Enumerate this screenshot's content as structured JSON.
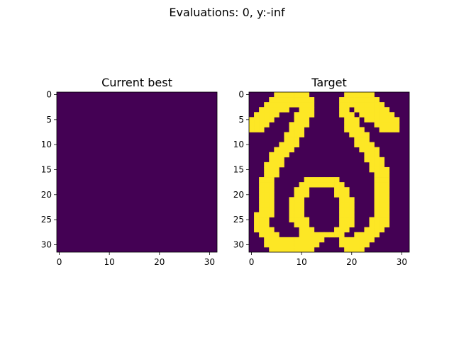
{
  "figure": {
    "suptitle": "Evaluations: 0, y:-inf"
  },
  "colors": {
    "background_low": "#440154",
    "foreground_high": "#fde725",
    "axis": "#000000"
  },
  "chart_data": [
    {
      "type": "heatmap",
      "title": "Current best",
      "xlabel": "",
      "ylabel": "",
      "grid_size": [
        32,
        32
      ],
      "xlim": [
        -0.5,
        31.5
      ],
      "ylim": [
        31.5,
        -0.5
      ],
      "xticks": [
        0,
        10,
        20,
        30
      ],
      "yticks": [
        0,
        5,
        10,
        15,
        20,
        25,
        30
      ],
      "rows": [
        "00000000000000000000000000000000",
        "00000000000000000000000000000000",
        "00000000000000000000000000000000",
        "00000000000000000000000000000000",
        "00000000000000000000000000000000",
        "00000000000000000000000000000000",
        "00000000000000000000000000000000",
        "00000000000000000000000000000000",
        "00000000000000000000000000000000",
        "00000000000000000000000000000000",
        "00000000000000000000000000000000",
        "00000000000000000000000000000000",
        "00000000000000000000000000000000",
        "00000000000000000000000000000000",
        "00000000000000000000000000000000",
        "00000000000000000000000000000000",
        "00000000000000000000000000000000",
        "00000000000000000000000000000000",
        "00000000000000000000000000000000",
        "00000000000000000000000000000000",
        "00000000000000000000000000000000",
        "00000000000000000000000000000000",
        "00000000000000000000000000000000",
        "00000000000000000000000000000000",
        "00000000000000000000000000000000",
        "00000000000000000000000000000000",
        "00000000000000000000000000000000",
        "00000000000000000000000000000000",
        "00000000000000000000000000000000",
        "00000000000000000000000000000000",
        "00000000000000000000000000000000",
        "00000000000000000000000000000000"
      ]
    },
    {
      "type": "heatmap",
      "title": "Target",
      "xlabel": "",
      "ylabel": "",
      "grid_size": [
        32,
        32
      ],
      "xlim": [
        -0.5,
        31.5
      ],
      "ylim": [
        31.5,
        -0.5
      ],
      "xticks": [
        0,
        10,
        20,
        30
      ],
      "yticks": [
        0,
        5,
        10,
        15,
        20,
        25,
        30
      ],
      "rows": [
        "00000111111100000001111110000000",
        "00001111111110000011111111000000",
        "00011111111110000011111111100000",
        "00111111001110000011011111110000",
        "01111100011110000011101111111000",
        "11111000011100000001110111111100",
        "11110000111100000001110001111100",
        "11100000111000000001111000111100",
        "00000001111000000000111100000000",
        "00000001110000000000011100000000",
        "00000011110000000000011110000000",
        "00000111100000000000001111000000",
        "00001111000000000000000111000000",
        "00001110000000000000000111100000",
        "00011110000000000000000011100000",
        "00011100000000000000000011110000",
        "00011100000000000000000001110000",
        "00111000000111111100000001110000",
        "00111000001111111110000001110000",
        "00111000011100000111000001110000",
        "00111000011100000111000001110000",
        "00111000111000000011100001110000",
        "00111000111000000011100001110000",
        "00111000111000000011100001110000",
        "01111000111000000011100001110000",
        "01110000111100000011100011110000",
        "01110000011100000011100011110000",
        "01111000001110000111000111100000",
        "00111100001111111110011111000000",
        "00011111111111100011111110000000",
        "00011111111111000011111100000000",
        "00001111111110000001111000000000"
      ]
    }
  ]
}
